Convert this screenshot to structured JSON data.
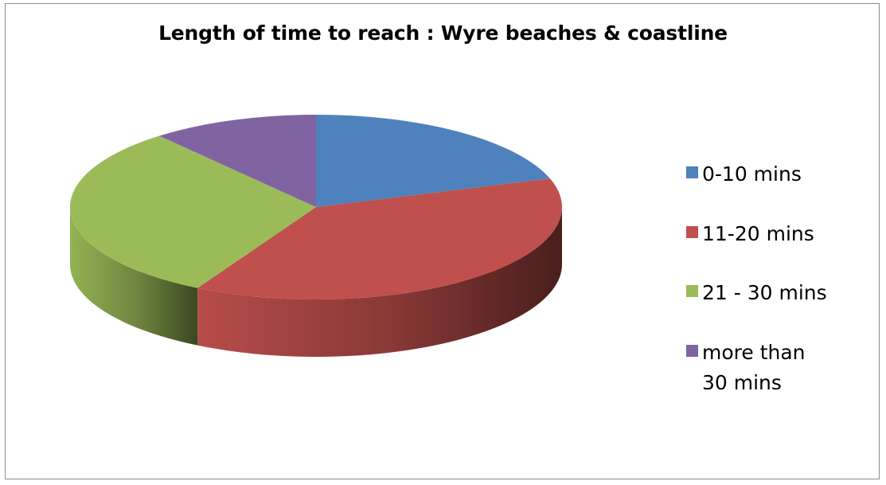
{
  "chart_data": {
    "type": "pie",
    "title": "Length of time to reach : Wyre beaches & coastline",
    "categories": [
      "0-10 mins",
      "11-20 mins",
      "21 - 30 mins",
      "more than 30 mins"
    ],
    "values": [
      20,
      38,
      31,
      11
    ],
    "unit": "",
    "colors": [
      "#4F81BD",
      "#C0504D",
      "#9BBB59",
      "#8064A2"
    ],
    "style": "3d",
    "legend": "right"
  }
}
